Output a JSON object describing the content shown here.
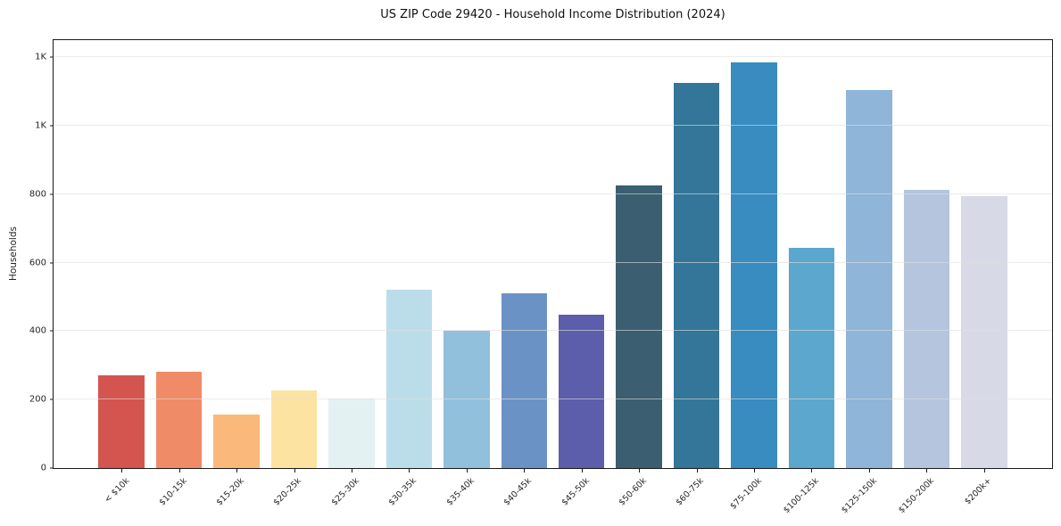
{
  "chart_data": {
    "type": "bar",
    "title": "US ZIP Code 29420 - Household Income Distribution (2024)",
    "xlabel": "",
    "ylabel": "Households",
    "ylim": [
      0,
      1250
    ],
    "grid": true,
    "legend": "none",
    "categories": [
      "< $10k",
      "$10-15k",
      "$15-20k",
      "$20-25k",
      "$25-30k",
      "$30-35k",
      "$35-40k",
      "$40-45k",
      "$45-50k",
      "$50-60k",
      "$60-75k",
      "$75-100k",
      "$100-125k",
      "$125-150k",
      "$150-200k",
      "$200k+"
    ],
    "values": [
      270,
      281,
      157,
      226,
      204,
      521,
      400,
      510,
      449,
      826,
      1124,
      1186,
      643,
      1103,
      813,
      795
    ],
    "bar_colors": [
      "#d4554f",
      "#f08b67",
      "#fab97a",
      "#fce3a1",
      "#e4f1f3",
      "#bbdde9",
      "#91c0dc",
      "#6b92c5",
      "#5c5dab",
      "#3b5f70",
      "#347699",
      "#388cc0",
      "#5ba7cd",
      "#8fb5d8",
      "#b5c5de",
      "#d7d9e6"
    ],
    "yticks": [
      {
        "value": 0,
        "label": "0"
      },
      {
        "value": 200,
        "label": "200"
      },
      {
        "value": 400,
        "label": "400"
      },
      {
        "value": 600,
        "label": "600"
      },
      {
        "value": 800,
        "label": "800"
      },
      {
        "value": 1000,
        "label": "1K"
      },
      {
        "value": 1200,
        "label": "1K"
      }
    ],
    "axis_color": "#1a1a1a",
    "gridline_color": "#e0e0e0",
    "background_color": "#ffffff"
  }
}
